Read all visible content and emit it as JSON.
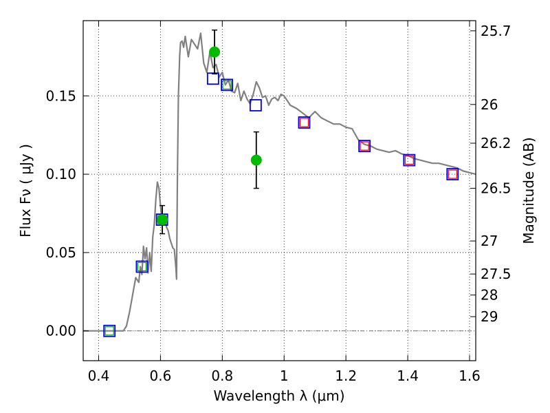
{
  "chart_data": {
    "type": "scatter",
    "title": "",
    "xlabel": "Wavelength  λ (μm)",
    "ylabel": "Flux  Fν  ( μJy )",
    "ylabel_right": "Magnitude (AB)",
    "xlim": [
      0.35,
      1.62
    ],
    "ylim": [
      -0.019,
      0.198
    ],
    "grid": true,
    "x_ticks": [
      0.4,
      0.6,
      0.8,
      1.0,
      1.2,
      1.4,
      1.6
    ],
    "x_tick_labels": [
      "0.4",
      "0.6",
      "0.8",
      "1",
      "1.2",
      "1.4",
      "1.6"
    ],
    "y_ticks": [
      0.0,
      0.05,
      0.1,
      0.15
    ],
    "y_tick_labels": [
      "0.00",
      "0.05",
      "0.10",
      "0.15"
    ],
    "mag_ticks": [
      {
        "label": "25.7",
        "flux": 0.1915
      },
      {
        "label": "26",
        "flux": 0.1445
      },
      {
        "label": "26.2",
        "flux": 0.1198
      },
      {
        "label": "26.5",
        "flux": 0.091
      },
      {
        "label": "27",
        "flux": 0.0574
      },
      {
        "label": "27.5",
        "flux": 0.0363
      },
      {
        "label": "28",
        "flux": 0.0229
      },
      {
        "label": "29",
        "flux": 0.0091
      }
    ],
    "series": [
      {
        "name": "model-spectrum",
        "kind": "line",
        "color": "#808080",
        "x": [
          0.35,
          0.48,
          0.49,
          0.5,
          0.51,
          0.52,
          0.53,
          0.535,
          0.54,
          0.545,
          0.55,
          0.555,
          0.56,
          0.565,
          0.57,
          0.575,
          0.58,
          0.585,
          0.59,
          0.595,
          0.6,
          0.605,
          0.61,
          0.615,
          0.62,
          0.625,
          0.63,
          0.635,
          0.64,
          0.645,
          0.65,
          0.652,
          0.655,
          0.658,
          0.662,
          0.665,
          0.67,
          0.675,
          0.68,
          0.69,
          0.7,
          0.71,
          0.72,
          0.73,
          0.74,
          0.75,
          0.76,
          0.77,
          0.78,
          0.79,
          0.8,
          0.81,
          0.82,
          0.83,
          0.84,
          0.85,
          0.86,
          0.87,
          0.88,
          0.89,
          0.9,
          0.91,
          0.92,
          0.93,
          0.94,
          0.95,
          0.96,
          0.97,
          0.98,
          0.99,
          1.0,
          1.02,
          1.04,
          1.06,
          1.08,
          1.1,
          1.12,
          1.14,
          1.16,
          1.18,
          1.2,
          1.22,
          1.24,
          1.26,
          1.28,
          1.3,
          1.32,
          1.34,
          1.36,
          1.38,
          1.4,
          1.42,
          1.44,
          1.46,
          1.48,
          1.5,
          1.52,
          1.54,
          1.56,
          1.58,
          1.6,
          1.62
        ],
        "y": [
          0.0,
          0.0,
          0.003,
          0.012,
          0.023,
          0.034,
          0.031,
          0.041,
          0.036,
          0.054,
          0.046,
          0.053,
          0.037,
          0.05,
          0.038,
          0.06,
          0.068,
          0.084,
          0.095,
          0.091,
          0.08,
          0.071,
          0.073,
          0.071,
          0.066,
          0.064,
          0.059,
          0.056,
          0.053,
          0.052,
          0.04,
          0.033,
          0.1,
          0.15,
          0.175,
          0.184,
          0.185,
          0.181,
          0.188,
          0.175,
          0.186,
          0.183,
          0.18,
          0.19,
          0.171,
          0.165,
          0.178,
          0.168,
          0.17,
          0.162,
          0.165,
          0.157,
          0.16,
          0.153,
          0.152,
          0.158,
          0.147,
          0.153,
          0.148,
          0.145,
          0.151,
          0.159,
          0.155,
          0.149,
          0.15,
          0.144,
          0.148,
          0.149,
          0.147,
          0.151,
          0.15,
          0.144,
          0.142,
          0.139,
          0.136,
          0.14,
          0.136,
          0.134,
          0.132,
          0.132,
          0.13,
          0.129,
          0.122,
          0.119,
          0.118,
          0.116,
          0.115,
          0.114,
          0.115,
          0.113,
          0.112,
          0.11,
          0.109,
          0.108,
          0.107,
          0.107,
          0.106,
          0.105,
          0.104,
          0.102,
          0.101,
          0.1
        ]
      },
      {
        "name": "observed-blue-squares",
        "kind": "marker-square",
        "color": "#0000ee",
        "x": [
          0.435,
          0.54,
          0.605,
          0.77,
          0.815,
          0.908,
          1.065,
          1.26,
          1.405,
          1.545
        ],
        "y": [
          0.0,
          0.041,
          0.071,
          0.161,
          0.157,
          0.144,
          0.133,
          0.118,
          0.109,
          0.1
        ]
      },
      {
        "name": "model-green-squares",
        "kind": "marker-square",
        "color": "#00aa00",
        "x": [
          0.435,
          0.54,
          0.605,
          0.815
        ],
        "y": [
          0.0,
          0.041,
          0.071,
          0.157
        ]
      },
      {
        "name": "model-red-squares",
        "kind": "marker-square",
        "color": "#ee0000",
        "x": [
          1.065,
          1.26,
          1.405,
          1.545
        ],
        "y": [
          0.133,
          0.118,
          0.109,
          0.1
        ]
      },
      {
        "name": "measured-green-points",
        "kind": "marker-circle",
        "color": "#00bb00",
        "x": [
          0.606,
          0.775,
          0.91
        ],
        "y": [
          0.071,
          0.178,
          0.109
        ],
        "y_err_low": [
          0.062,
          0.164,
          0.091
        ],
        "y_err_high": [
          0.08,
          0.192,
          0.127
        ]
      }
    ]
  }
}
